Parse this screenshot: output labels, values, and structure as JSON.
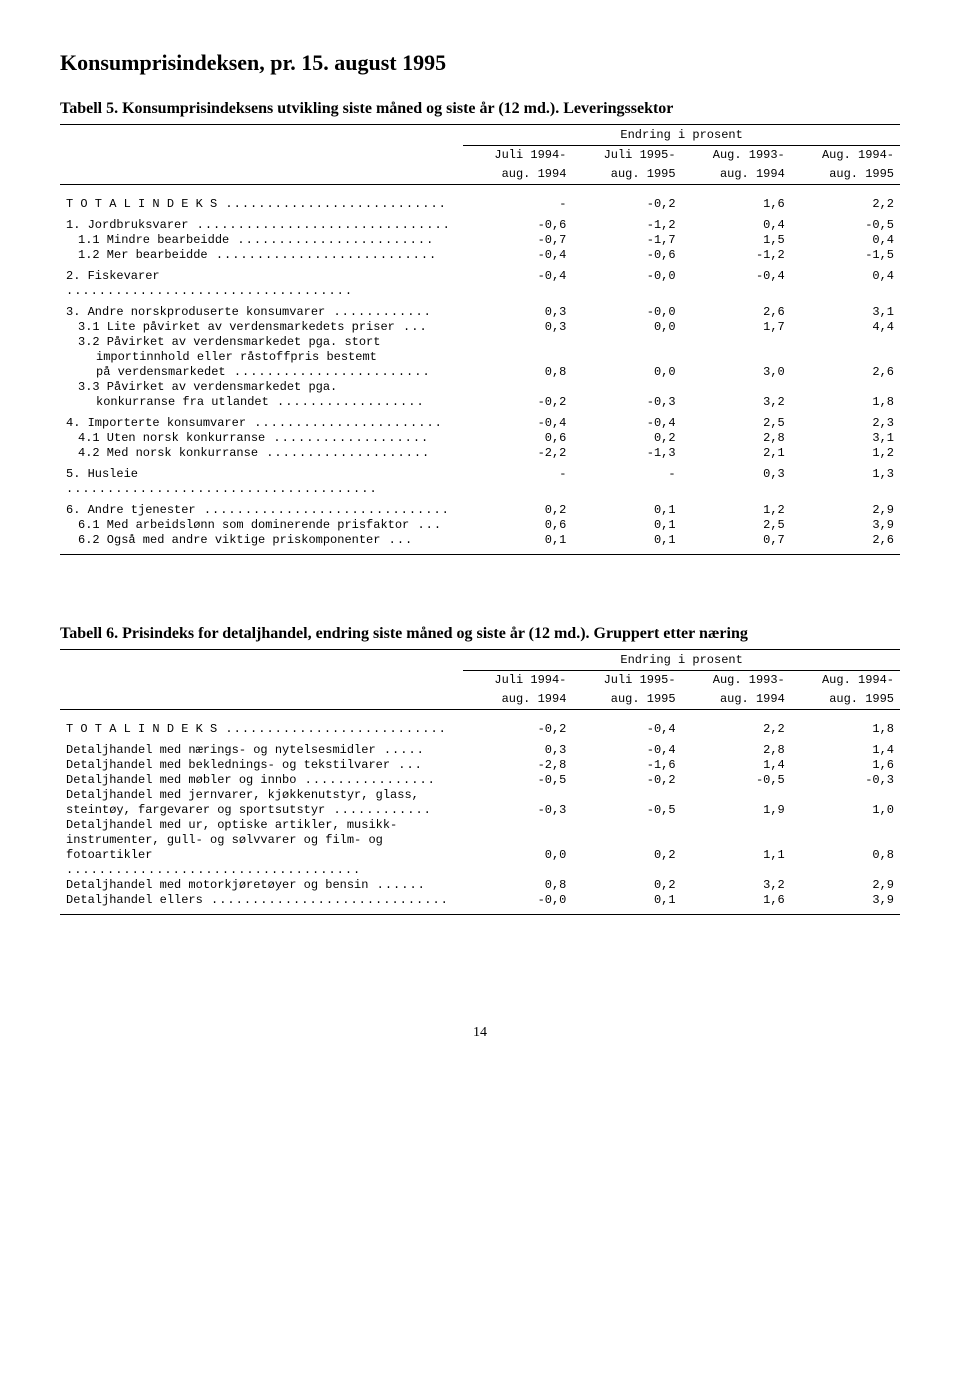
{
  "page_title": "Konsumprisindeksen, pr. 15. august 1995",
  "page_number": "14",
  "table5": {
    "caption": "Tabell 5.  Konsumprisindeksens utvikling siste måned og siste år (12 md.). Leveringssektor",
    "super_header": "Endring i prosent",
    "col_headers": {
      "c1a": "Juli 1994-",
      "c1b": "aug. 1994",
      "c2a": "Juli 1995-",
      "c2b": "aug. 1995",
      "c3a": "Aug. 1993-",
      "c3b": "aug. 1994",
      "c4a": "Aug. 1994-",
      "c4b": "aug. 1995"
    },
    "rows": [
      {
        "label": "T O T A L I N D E K S",
        "dots": true,
        "v": [
          "-",
          "-0,2",
          "1,6",
          "2,2"
        ],
        "indent": 0
      },
      {
        "label": "1. Jordbruksvarer",
        "dots": true,
        "v": [
          "-0,6",
          "-1,2",
          "0,4",
          "-0,5"
        ],
        "indent": 0,
        "group_top": true
      },
      {
        "label": "1.1 Mindre bearbeidde",
        "dots": true,
        "v": [
          "-0,7",
          "-1,7",
          "1,5",
          "0,4"
        ],
        "indent": 1
      },
      {
        "label": "1.2 Mer bearbeidde",
        "dots": true,
        "v": [
          "-0,4",
          "-0,6",
          "-1,2",
          "-1,5"
        ],
        "indent": 1
      },
      {
        "label": "2. Fiskevarer",
        "dots": true,
        "v": [
          "-0,4",
          "-0,0",
          "-0,4",
          "0,4"
        ],
        "indent": 0,
        "group_top": true
      },
      {
        "label": "3. Andre norskproduserte konsumvarer",
        "dots": true,
        "v": [
          "0,3",
          "-0,0",
          "2,6",
          "3,1"
        ],
        "indent": 0,
        "group_top": true
      },
      {
        "label": "3.1 Lite påvirket av verdensmarkedets priser",
        "dots": true,
        "v": [
          "0,3",
          "0,0",
          "1,7",
          "4,4"
        ],
        "indent": 1
      },
      {
        "label": "3.2 Påvirket av verdensmarkedet pga. stort",
        "dots": false,
        "v": [
          "",
          "",
          "",
          ""
        ],
        "indent": 1
      },
      {
        "label": "importinnhold eller råstoffpris bestemt",
        "dots": false,
        "v": [
          "",
          "",
          "",
          ""
        ],
        "indent": 2
      },
      {
        "label": "på verdensmarkedet",
        "dots": true,
        "v": [
          "0,8",
          "0,0",
          "3,0",
          "2,6"
        ],
        "indent": 2
      },
      {
        "label": "3.3 Påvirket av verdensmarkedet pga.",
        "dots": false,
        "v": [
          "",
          "",
          "",
          ""
        ],
        "indent": 1
      },
      {
        "label": "konkurranse fra utlandet",
        "dots": true,
        "v": [
          "-0,2",
          "-0,3",
          "3,2",
          "1,8"
        ],
        "indent": 2
      },
      {
        "label": "4. Importerte konsumvarer",
        "dots": true,
        "v": [
          "-0,4",
          "-0,4",
          "2,5",
          "2,3"
        ],
        "indent": 0,
        "group_top": true
      },
      {
        "label": "4.1 Uten norsk konkurranse",
        "dots": true,
        "v": [
          "0,6",
          "0,2",
          "2,8",
          "3,1"
        ],
        "indent": 1
      },
      {
        "label": "4.2 Med norsk konkurranse",
        "dots": true,
        "v": [
          "-2,2",
          "-1,3",
          "2,1",
          "1,2"
        ],
        "indent": 1
      },
      {
        "label": "5. Husleie",
        "dots": true,
        "v": [
          "-",
          "-",
          "0,3",
          "1,3"
        ],
        "indent": 0,
        "group_top": true
      },
      {
        "label": "6. Andre tjenester",
        "dots": true,
        "v": [
          "0,2",
          "0,1",
          "1,2",
          "2,9"
        ],
        "indent": 0,
        "group_top": true
      },
      {
        "label": "6.1 Med arbeidslønn som dominerende prisfaktor",
        "dots": true,
        "v": [
          "0,6",
          "0,1",
          "2,5",
          "3,9"
        ],
        "indent": 1
      },
      {
        "label": "6.2 Også med andre viktige priskomponenter",
        "dots": true,
        "v": [
          "0,1",
          "0,1",
          "0,7",
          "2,6"
        ],
        "indent": 1
      }
    ]
  },
  "table6": {
    "caption": "Tabell 6.  Prisindeks for detaljhandel, endring siste måned og siste år (12 md.). Gruppert etter næring",
    "super_header": "Endring i prosent",
    "col_headers": {
      "c1a": "Juli 1994-",
      "c1b": "aug. 1994",
      "c2a": "Juli 1995-",
      "c2b": "aug. 1995",
      "c3a": "Aug. 1993-",
      "c3b": "aug. 1994",
      "c4a": "Aug. 1994-",
      "c4b": "aug. 1995"
    },
    "rows": [
      {
        "label": "T O T A L I N D E K S",
        "dots": true,
        "v": [
          "-0,2",
          "-0,4",
          "2,2",
          "1,8"
        ],
        "indent": 0
      },
      {
        "label": "Detaljhandel med nærings- og nytelsesmidler",
        "dots": true,
        "v": [
          "0,3",
          "-0,4",
          "2,8",
          "1,4"
        ],
        "indent": 0,
        "group_top": true
      },
      {
        "label": "Detaljhandel med beklednings- og tekstilvarer",
        "dots": true,
        "v": [
          "-2,8",
          "-1,6",
          "1,4",
          "1,6"
        ],
        "indent": 0
      },
      {
        "label": "Detaljhandel med møbler og innbo",
        "dots": true,
        "v": [
          "-0,5",
          "-0,2",
          "-0,5",
          "-0,3"
        ],
        "indent": 0
      },
      {
        "label": "Detaljhandel med jernvarer, kjøkkenutstyr, glass,",
        "dots": false,
        "v": [
          "",
          "",
          "",
          ""
        ],
        "indent": 0
      },
      {
        "label": "steintøy, fargevarer og sportsutstyr",
        "dots": true,
        "v": [
          "-0,3",
          "-0,5",
          "1,9",
          "1,0"
        ],
        "indent": 0
      },
      {
        "label": "Detaljhandel med ur, optiske artikler, musikk-",
        "dots": false,
        "v": [
          "",
          "",
          "",
          ""
        ],
        "indent": 0
      },
      {
        "label": "instrumenter, gull- og sølvvarer og film- og",
        "dots": false,
        "v": [
          "",
          "",
          "",
          ""
        ],
        "indent": 0
      },
      {
        "label": "fotoartikler",
        "dots": true,
        "v": [
          "0,0",
          "0,2",
          "1,1",
          "0,8"
        ],
        "indent": 0
      },
      {
        "label": "Detaljhandel med motorkjøretøyer og bensin",
        "dots": true,
        "v": [
          "0,8",
          "0,2",
          "3,2",
          "2,9"
        ],
        "indent": 0
      },
      {
        "label": "Detaljhandel ellers",
        "dots": true,
        "v": [
          "-0,0",
          "0,1",
          "1,6",
          "3,9"
        ],
        "indent": 0
      }
    ]
  }
}
